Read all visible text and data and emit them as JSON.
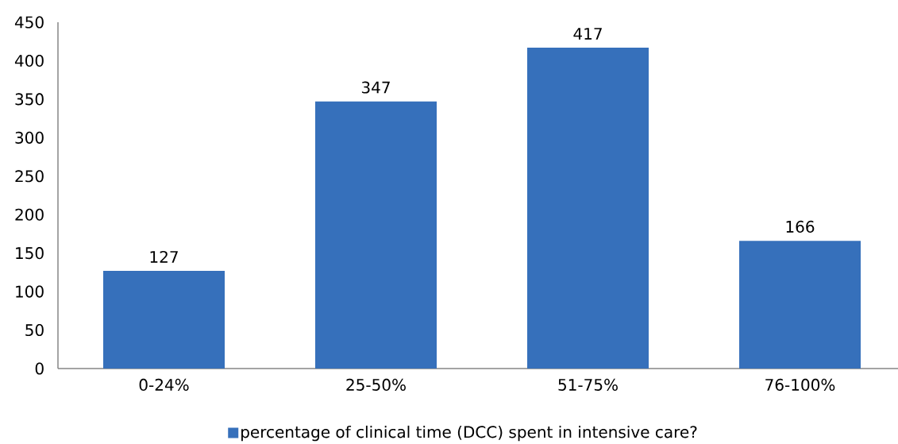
{
  "chart_data": {
    "type": "bar",
    "categories": [
      "0-24%",
      "25-50%",
      "51-75%",
      "76-100%"
    ],
    "series": [
      {
        "name": "percentage of clinical time (DCC) spent in intensive care?",
        "color": "#3670bb",
        "values": [
          127,
          347,
          417,
          166
        ]
      }
    ],
    "ylim": [
      0,
      450
    ],
    "yticks": [
      0,
      50,
      100,
      150,
      200,
      250,
      300,
      350,
      400,
      450
    ],
    "data_labels": true,
    "legend": "bottom"
  }
}
